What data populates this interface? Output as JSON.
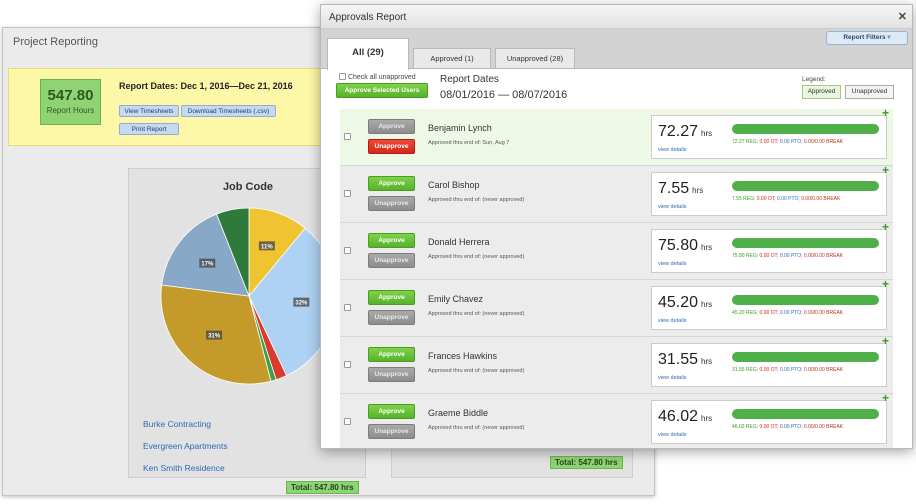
{
  "project_reporting": {
    "title": "Project Reporting",
    "hours_value": "547.80",
    "hours_label": "Report Hours",
    "report_dates": "Report Dates: Dec 1, 2016—Dec 21, 2016",
    "buttons": {
      "view": "View Timesheets",
      "download": "Download Timesheets (.csv)",
      "print": "Print Report"
    },
    "job_code_title": "Job Code",
    "job_links": [
      "Burke Contracting",
      "Evergreen Apartments",
      "Ken Smith Residence"
    ],
    "total": "Total: 547.80 hrs",
    "total2": "Total: 547.80 hrs",
    "colors": {
      "summary_bg": "#fdf7a8",
      "hours_green": "#8fd374"
    }
  },
  "chart_data": {
    "type": "pie",
    "title": "Job Code",
    "slice_labels": [
      "11%",
      "32%",
      "",
      "",
      "31%",
      "17%",
      ""
    ],
    "values": [
      11,
      32,
      2,
      1,
      31,
      17,
      6
    ],
    "colors": [
      "#f0c430",
      "#aed2f3",
      "#d93b2e",
      "#3da14a",
      "#c49b2a",
      "#88a8c8",
      "#2f7a3a"
    ]
  },
  "approvals": {
    "title": "Approvals Report",
    "close": "✕",
    "report_filters": "Report Filters",
    "tabs": [
      "All (29)",
      "Approved (1)",
      "Unapproved (28)"
    ],
    "check_all": "Check all unapproved",
    "approve_selected": "Approve Selected Users",
    "report_dates_label": "Report Dates",
    "report_dates_value": "08/01/2016 — 08/07/2016",
    "legend_label": "Legend:",
    "legend_approved": "Approved",
    "legend_unapproved": "Unapproved",
    "approve_label": "Approve",
    "unapprove_label": "Unapprove",
    "view_details": "view details",
    "unit": "hrs",
    "rows": [
      {
        "name": "Benjamin Lynch",
        "sub": "Approved thru end of: Sun, Aug 7",
        "hours": "72.27",
        "reg": "72.27 REG;",
        "ot": "0.00 OT;",
        "pto": "0.00 PTO;",
        "brk": "0.00/0.00 BREAK"
      },
      {
        "name": "Carol Bishop",
        "sub": "Approved thru end of: (never approved)",
        "hours": "7.55",
        "reg": "7.55 REG;",
        "ot": "0.00 OT;",
        "pto": "0.00 PTO;",
        "brk": "0.00/0.00 BREAK"
      },
      {
        "name": "Donald Herrera",
        "sub": "Approved thru end of: (never approved)",
        "hours": "75.80",
        "reg": "75.80 REG;",
        "ot": "0.00 OT;",
        "pto": "0.00 PTO;",
        "brk": "0.00/0.00 BREAK"
      },
      {
        "name": "Emily Chavez",
        "sub": "Approved thru end of: (never approved)",
        "hours": "45.20",
        "reg": "45.20 REG;",
        "ot": "0.00 OT;",
        "pto": "0.00 PTO;",
        "brk": "0.00/0.00 BREAK"
      },
      {
        "name": "Frances Hawkins",
        "sub": "Approved thru end of: (never approved)",
        "hours": "31.55",
        "reg": "31.55 REG;",
        "ot": "0.00 OT;",
        "pto": "0.00 PTO;",
        "brk": "0.00/0.00 BREAK"
      },
      {
        "name": "Graeme Biddle",
        "sub": "Approved thru end of: (never approved)",
        "hours": "46.02",
        "reg": "46.02 REG;",
        "ot": "0.00 OT;",
        "pto": "0.00 PTO;",
        "brk": "0.00/0.00 BREAK"
      }
    ]
  }
}
